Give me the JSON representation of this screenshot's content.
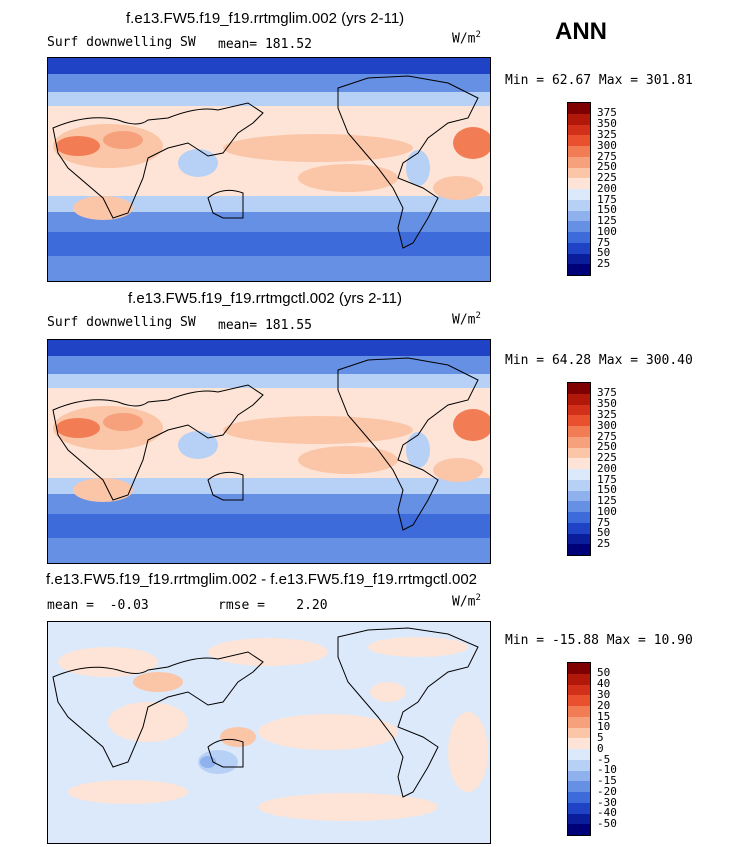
{
  "season": "ANN",
  "panels": [
    {
      "title": "f.e13.FW5.f19_f19.rrtmglim.002 (yrs 2-11)",
      "left_label": "Surf downwelling SW",
      "stat_label": "mean=",
      "stat_value": "181.52",
      "units": "W/m",
      "units_sup": "2",
      "minmax": "Min =  62.67 Max = 301.81",
      "colorbar_ticks": [
        "375",
        "350",
        "325",
        "300",
        "275",
        "250",
        "225",
        "200",
        "175",
        "150",
        "125",
        "100",
        "75",
        "50",
        "25"
      ]
    },
    {
      "title": "f.e13.FW5.f19_f19.rrtmgctl.002 (yrs 2-11)",
      "left_label": "Surf downwelling SW",
      "stat_label": "mean=",
      "stat_value": "181.55",
      "units": "W/m",
      "units_sup": "2",
      "minmax": "Min =  64.28 Max = 300.40",
      "colorbar_ticks": [
        "375",
        "350",
        "325",
        "300",
        "275",
        "250",
        "225",
        "200",
        "175",
        "150",
        "125",
        "100",
        "75",
        "50",
        "25"
      ]
    },
    {
      "title": "f.e13.FW5.f19_f19.rrtmglim.002 - f.e13.FW5.f19_f19.rrtmgctl.002",
      "left_label": "mean =",
      "left_value": "-0.03",
      "stat_label": "rmse =",
      "stat_value": "2.20",
      "units": "W/m",
      "units_sup": "2",
      "minmax": "Min = -15.88 Max =  10.90",
      "colorbar_ticks": [
        "50",
        "40",
        "30",
        "20",
        "15",
        "10",
        "5",
        "0",
        "-5",
        "-10",
        "-15",
        "-20",
        "-30",
        "-40",
        "-50"
      ]
    }
  ],
  "colorbar_colors": [
    "#7f0000",
    "#b2180a",
    "#d2301a",
    "#e8502e",
    "#f27d54",
    "#f7a17c",
    "#fbc6a8",
    "#fde4d6",
    "#dce9fb",
    "#b7d0f6",
    "#8fb2ee",
    "#6690e4",
    "#3d6bd9",
    "#1f43c4",
    "#0a1e9c",
    "#000078"
  ],
  "colors": {
    "ocean_blue_dark": "#1f43c4",
    "blue_mid": "#3d6bd9",
    "blue_light": "#6690e4",
    "blue_pale": "#b7d0f6",
    "neutral": "#fde4d6",
    "warm_light": "#fbc6a8",
    "warm_mid": "#f7a17c",
    "warm_strong": "#f27d54"
  }
}
